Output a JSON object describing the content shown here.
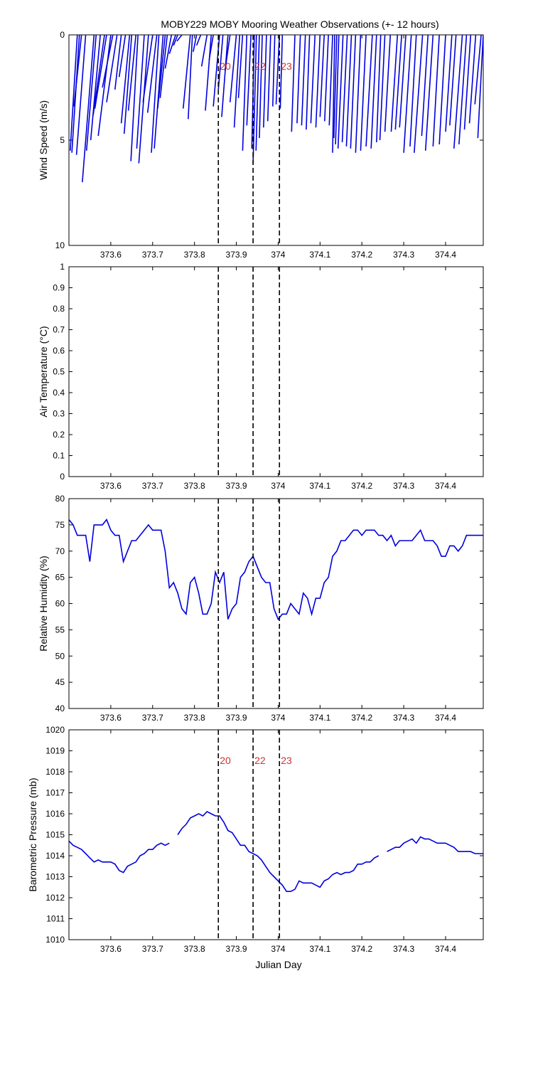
{
  "title": "MOBY229 MOBY Mooring Weather Observations (+- 12 hours)",
  "xlabel": "Julian Day",
  "colors": {
    "series": "#0000dd",
    "event_text": "#cc3333",
    "event_line": "#000000"
  },
  "events": [
    {
      "label": "20",
      "x": 373.857
    },
    {
      "label": "22",
      "x": 373.94
    },
    {
      "label": "23",
      "x": 374.003
    }
  ],
  "chart_data": [
    {
      "type": "line",
      "name": "wind",
      "ylabel": "Wind Speed (m/s)",
      "xlim": [
        373.5,
        374.49
      ],
      "ylim": [
        0,
        10
      ],
      "y_reversed": true,
      "xticks": [
        "373.6",
        "373.7",
        "373.8",
        "373.9",
        "374",
        "374.1",
        "374.2",
        "374.3",
        "374.4"
      ],
      "yticks": [
        "0",
        "5",
        "10"
      ],
      "grid": false,
      "show_event_labels": true,
      "stick_segments": [
        [
          373.503,
          5.5,
          373.52,
          0
        ],
        [
          373.507,
          5.6,
          373.525,
          0
        ],
        [
          373.512,
          3.4,
          373.53,
          0
        ],
        [
          373.518,
          5.7,
          373.54,
          0
        ],
        [
          373.532,
          7.0,
          373.56,
          0
        ],
        [
          373.542,
          5.5,
          373.565,
          0
        ],
        [
          373.552,
          5.0,
          373.575,
          0
        ],
        [
          373.558,
          3.8,
          373.585,
          0
        ],
        [
          373.562,
          3.5,
          373.59,
          0
        ],
        [
          373.57,
          4.8,
          373.6,
          0
        ],
        [
          373.58,
          2.5,
          373.605,
          0
        ],
        [
          373.59,
          3.2,
          373.615,
          0
        ],
        [
          373.61,
          2.6,
          373.625,
          0
        ],
        [
          373.62,
          2.0,
          373.635,
          0
        ],
        [
          373.625,
          4.2,
          373.645,
          0
        ],
        [
          373.632,
          4.7,
          373.65,
          0
        ],
        [
          373.642,
          3.6,
          373.66,
          0
        ],
        [
          373.648,
          6.0,
          373.665,
          0
        ],
        [
          373.662,
          5.4,
          373.68,
          0
        ],
        [
          373.667,
          6.1,
          373.69,
          0
        ],
        [
          373.677,
          3.2,
          373.7,
          0
        ],
        [
          373.688,
          3.7,
          373.71,
          0
        ],
        [
          373.697,
          5.6,
          373.715,
          0
        ],
        [
          373.704,
          5.4,
          373.725,
          0
        ],
        [
          373.712,
          3.5,
          373.73,
          0
        ],
        [
          373.718,
          3.0,
          373.735,
          0
        ],
        [
          373.73,
          1.6,
          373.745,
          0
        ],
        [
          373.74,
          0.9,
          373.755,
          0
        ],
        [
          373.75,
          0.5,
          373.76,
          0
        ],
        [
          373.758,
          0.3,
          373.77,
          0
        ],
        [
          373.773,
          3.5,
          373.79,
          0
        ],
        [
          373.785,
          4.0,
          373.795,
          0
        ],
        [
          373.797,
          0.8,
          373.805,
          0
        ],
        [
          373.805,
          0.5,
          373.815,
          0
        ],
        [
          373.817,
          1.5,
          373.83,
          0
        ],
        [
          373.826,
          3.6,
          373.84,
          0
        ],
        [
          373.835,
          1.2,
          373.845,
          0
        ],
        [
          373.845,
          3.4,
          373.86,
          0
        ],
        [
          373.857,
          2.6,
          373.868,
          0
        ],
        [
          373.865,
          3.9,
          373.88,
          0
        ],
        [
          373.873,
          1.7,
          373.885,
          0
        ],
        [
          373.885,
          3.2,
          373.9,
          0
        ],
        [
          373.895,
          4.4,
          373.908,
          0
        ],
        [
          373.905,
          3.0,
          373.915,
          0
        ],
        [
          373.915,
          5.5,
          373.925,
          0
        ],
        [
          373.925,
          4.3,
          373.935,
          0
        ],
        [
          373.937,
          5.4,
          373.943,
          0
        ],
        [
          373.94,
          6.1,
          373.948,
          0
        ],
        [
          373.947,
          5.5,
          373.955,
          0
        ],
        [
          373.955,
          4.9,
          373.962,
          0
        ],
        [
          373.965,
          4.4,
          373.972,
          0
        ],
        [
          373.975,
          4.1,
          373.982,
          0
        ],
        [
          373.987,
          3.4,
          373.992,
          0
        ],
        [
          373.995,
          3.3,
          374.003,
          0
        ],
        [
          374.005,
          3.5,
          374.01,
          0
        ],
        [
          374.032,
          4.6,
          374.04,
          0
        ],
        [
          374.045,
          4.2,
          374.053,
          0
        ],
        [
          374.056,
          4.3,
          374.065,
          0
        ],
        [
          374.067,
          4.5,
          374.075,
          0
        ],
        [
          374.078,
          4.2,
          374.088,
          0
        ],
        [
          374.09,
          4.4,
          374.1,
          0
        ],
        [
          374.1,
          3.9,
          374.11,
          0
        ],
        [
          374.111,
          4.1,
          374.12,
          0
        ],
        [
          374.122,
          4.3,
          374.13,
          0
        ],
        [
          374.13,
          5.6,
          374.135,
          0
        ],
        [
          374.133,
          4.9,
          374.14,
          0
        ],
        [
          374.137,
          5.2,
          374.145,
          0
        ],
        [
          374.143,
          5.4,
          374.155,
          0
        ],
        [
          374.153,
          5.1,
          374.165,
          0
        ],
        [
          374.163,
          5.3,
          374.175,
          0
        ],
        [
          374.173,
          5.4,
          374.185,
          0
        ],
        [
          374.185,
          5.6,
          374.197,
          0
        ],
        [
          374.197,
          5.5,
          374.21,
          0
        ],
        [
          374.21,
          5.3,
          374.225,
          0
        ],
        [
          374.222,
          5.4,
          374.235,
          0
        ],
        [
          374.235,
          5.1,
          374.245,
          0
        ],
        [
          374.243,
          5.0,
          374.255,
          0
        ],
        [
          374.255,
          4.6,
          374.268,
          0
        ],
        [
          374.27,
          4.6,
          374.285,
          0
        ],
        [
          374.28,
          4.5,
          374.295,
          0
        ],
        [
          374.29,
          4.4,
          374.305,
          0
        ],
        [
          374.3,
          5.6,
          374.318,
          0
        ],
        [
          374.315,
          5.3,
          374.33,
          0
        ],
        [
          374.325,
          5.6,
          374.345,
          0
        ],
        [
          374.343,
          4.8,
          374.358,
          0
        ],
        [
          374.352,
          5.5,
          374.37,
          0
        ],
        [
          374.37,
          5.3,
          374.385,
          0
        ],
        [
          374.385,
          5.2,
          374.4,
          0
        ],
        [
          374.4,
          4.6,
          374.415,
          0
        ],
        [
          374.41,
          4.3,
          374.425,
          0
        ],
        [
          374.42,
          5.4,
          374.44,
          0
        ],
        [
          374.432,
          5.2,
          374.45,
          0
        ],
        [
          374.445,
          4.5,
          374.46,
          0
        ],
        [
          374.457,
          4.2,
          374.472,
          0
        ],
        [
          374.47,
          3.3,
          374.485,
          0
        ],
        [
          374.477,
          4.9,
          374.49,
          0
        ]
      ]
    },
    {
      "type": "line",
      "name": "airtemp",
      "ylabel": "Air Temperature (°C)",
      "xlim": [
        373.5,
        374.49
      ],
      "ylim": [
        0,
        1
      ],
      "y_reversed": false,
      "xticks": [
        "373.6",
        "373.7",
        "373.8",
        "373.9",
        "374",
        "374.1",
        "374.2",
        "374.3",
        "374.4"
      ],
      "yticks": [
        "0",
        "0.1",
        "0.2",
        "0.3",
        "0.4",
        "0.5",
        "0.6",
        "0.7",
        "0.8",
        "0.9",
        "1"
      ],
      "grid": false,
      "show_event_labels": false,
      "x": [],
      "y": []
    },
    {
      "type": "line",
      "name": "humidity",
      "ylabel": "Relative Humidity (%)",
      "xlim": [
        373.5,
        374.49
      ],
      "ylim": [
        40,
        80
      ],
      "y_reversed": false,
      "xticks": [
        "373.6",
        "373.7",
        "373.8",
        "373.9",
        "374",
        "374.1",
        "374.2",
        "374.3",
        "374.4"
      ],
      "yticks": [
        "40",
        "45",
        "50",
        "55",
        "60",
        "65",
        "70",
        "75",
        "80"
      ],
      "grid": false,
      "show_event_labels": false,
      "x": [
        373.5,
        373.51,
        373.52,
        373.53,
        373.54,
        373.55,
        373.56,
        373.57,
        373.58,
        373.59,
        373.6,
        373.61,
        373.62,
        373.63,
        373.64,
        373.65,
        373.66,
        373.67,
        373.68,
        373.69,
        373.7,
        373.71,
        373.72,
        373.73,
        373.74,
        373.75,
        373.76,
        373.77,
        373.78,
        373.79,
        373.8,
        373.81,
        373.82,
        373.83,
        373.84,
        373.85,
        373.86,
        373.87,
        373.88,
        373.89,
        373.9,
        373.91,
        373.92,
        373.93,
        373.94,
        373.95,
        373.96,
        373.97,
        373.98,
        373.99,
        374.0,
        374.01,
        374.02,
        374.03,
        374.04,
        374.05,
        374.06,
        374.07,
        374.08,
        374.09,
        374.1,
        374.11,
        374.12,
        374.13,
        374.14,
        374.15,
        374.16,
        374.17,
        374.18,
        374.19,
        374.2,
        374.21,
        374.22,
        374.23,
        374.24,
        374.25,
        374.26,
        374.27,
        374.28,
        374.29,
        374.3,
        374.31,
        374.32,
        374.33,
        374.34,
        374.35,
        374.36,
        374.37,
        374.38,
        374.39,
        374.4,
        374.41,
        374.42,
        374.43,
        374.44,
        374.45,
        374.46,
        374.47,
        374.48,
        374.49
      ],
      "y": [
        76,
        75,
        73,
        73,
        73,
        68,
        75,
        75,
        75,
        76,
        74,
        73,
        73,
        68,
        70,
        72,
        72,
        73,
        74,
        75,
        74,
        74,
        74,
        70,
        63,
        64,
        62,
        59,
        58,
        64,
        65,
        62,
        58,
        58,
        60,
        66,
        64,
        66,
        57,
        59,
        60,
        65,
        66,
        68,
        69,
        67,
        65,
        64,
        64,
        59,
        57,
        58,
        58,
        60,
        59,
        58,
        62,
        61,
        58,
        61,
        61,
        64,
        65,
        69,
        70,
        72,
        72,
        73,
        74,
        74,
        73,
        74,
        74,
        74,
        73,
        73,
        72,
        73,
        71,
        72,
        72,
        72,
        72,
        73,
        74,
        72,
        72,
        72,
        71,
        69,
        69,
        71,
        71,
        70,
        71,
        73,
        73,
        73,
        73,
        73
      ]
    },
    {
      "type": "line",
      "name": "pressure",
      "ylabel": "Barometric Pressure (mb)",
      "xlim": [
        373.5,
        374.49
      ],
      "ylim": [
        1010,
        1020
      ],
      "y_reversed": false,
      "xticks": [
        "373.6",
        "373.7",
        "373.8",
        "373.9",
        "374",
        "374.1",
        "374.2",
        "374.3",
        "374.4"
      ],
      "yticks": [
        "1010",
        "1011",
        "1012",
        "1013",
        "1014",
        "1015",
        "1016",
        "1017",
        "1018",
        "1019",
        "1020"
      ],
      "grid": false,
      "show_event_labels": true,
      "segments": [
        {
          "x": [
            373.5,
            373.51,
            373.52,
            373.53,
            373.54,
            373.55,
            373.56,
            373.57,
            373.58,
            373.59,
            373.6,
            373.61,
            373.62,
            373.63,
            373.64,
            373.65,
            373.66,
            373.67,
            373.68,
            373.69,
            373.7,
            373.71,
            373.72,
            373.73,
            373.74,
            373.75
          ],
          "y": [
            1014.7,
            1014.5,
            1014.4,
            1014.3,
            1014.1,
            1013.9,
            1013.7,
            1013.8,
            1013.7,
            1013.7,
            1013.7,
            1013.6,
            1013.3,
            1013.2,
            1013.5,
            1013.6,
            1013.7,
            1014.0,
            1014.1,
            1014.3,
            1014.3,
            1014.5,
            1014.6,
            1014.5,
            1014.6,
            null
          ]
        },
        {
          "x": [
            373.76,
            373.77,
            373.78,
            373.79,
            373.8,
            373.81,
            373.82,
            373.83,
            373.84,
            373.85,
            373.86,
            373.87,
            373.88,
            373.89,
            373.9,
            373.91,
            373.92,
            373.93,
            373.94,
            373.95,
            373.96,
            373.97,
            373.98,
            373.99,
            374.0,
            374.01,
            374.02,
            374.03,
            374.04,
            374.05,
            374.06,
            374.07,
            374.08,
            374.09,
            374.1,
            374.11,
            374.12,
            374.13,
            374.14,
            374.15,
            374.16,
            374.17,
            374.18,
            374.19,
            374.2,
            374.21,
            374.22,
            374.23,
            374.24
          ],
          "y": [
            1015.0,
            1015.3,
            1015.5,
            1015.8,
            1015.9,
            1016.0,
            1015.9,
            1016.1,
            1016.0,
            1015.9,
            1015.9,
            1015.6,
            1015.2,
            1015.1,
            1014.8,
            1014.5,
            1014.5,
            1014.2,
            1014.1,
            1014.0,
            1013.8,
            1013.5,
            1013.2,
            1013.0,
            1012.8,
            1012.6,
            1012.3,
            1012.3,
            1012.4,
            1012.8,
            1012.7,
            1012.7,
            1012.7,
            1012.6,
            1012.5,
            1012.8,
            1012.9,
            1013.1,
            1013.2,
            1013.1,
            1013.2,
            1013.2,
            1013.3,
            1013.6,
            1013.6,
            1013.7,
            1013.7,
            1013.9,
            1014.0
          ]
        },
        {
          "x": [
            374.26,
            374.27,
            374.28,
            374.29,
            374.3,
            374.31,
            374.32,
            374.33,
            374.34,
            374.35,
            374.36,
            374.37,
            374.38,
            374.39,
            374.4,
            374.41,
            374.42,
            374.43,
            374.44,
            374.45,
            374.46,
            374.47,
            374.48,
            374.49
          ],
          "y": [
            1014.2,
            1014.3,
            1014.4,
            1014.4,
            1014.6,
            1014.7,
            1014.8,
            1014.6,
            1014.9,
            1014.8,
            1014.8,
            1014.7,
            1014.6,
            1014.6,
            1014.6,
            1014.5,
            1014.4,
            1014.2,
            1014.2,
            1014.2,
            1014.2,
            1014.1,
            1014.1,
            1014.1
          ]
        }
      ]
    }
  ]
}
